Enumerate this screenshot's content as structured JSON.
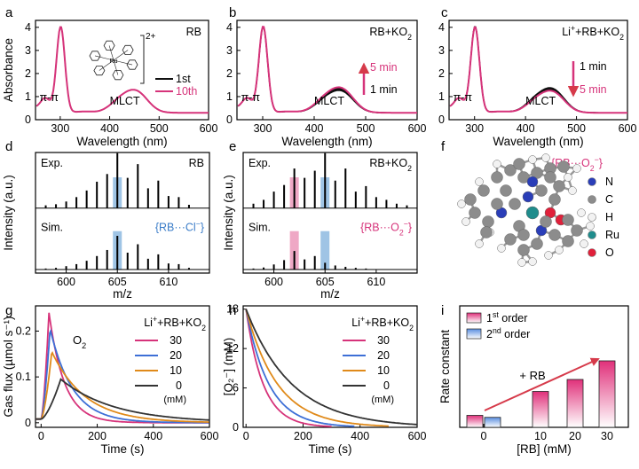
{
  "figure": {
    "panel_letters": [
      "a",
      "b",
      "c",
      "d",
      "e",
      "f",
      "g",
      "h",
      "i"
    ],
    "molecule_label": "2+",
    "metal_label": "Ru"
  },
  "chart_data": [
    {
      "panel": "a",
      "type": "line",
      "xlabel": "Wavelength (nm)",
      "ylabel": "Absorbance",
      "xlim": [
        250,
        600
      ],
      "ylim": [
        0,
        4.3
      ],
      "xticks": [
        300,
        400,
        500,
        600
      ],
      "yticks": [
        0,
        1,
        2,
        3,
        4
      ],
      "title": "RB",
      "legend": [
        "1st",
        "10th"
      ],
      "annotations": [
        "π-π",
        "MLCT"
      ],
      "series": [
        {
          "name": "1st",
          "color": "#111111",
          "scale": 1.0
        },
        {
          "name": "10th",
          "color": "#d6337a",
          "scale": 1.0
        }
      ]
    },
    {
      "panel": "b",
      "type": "line",
      "xlabel": "Wavelength (nm)",
      "ylabel": "",
      "xlim": [
        250,
        600
      ],
      "ylim": [
        0,
        4.3
      ],
      "xticks": [
        300,
        400,
        500,
        600
      ],
      "yticks": [
        0,
        1,
        2,
        3,
        4
      ],
      "title": "RB+KO2",
      "arrow_top": "5 min",
      "arrow_bottom": "1 min",
      "annotations": [
        "π-π",
        "MLCT"
      ],
      "series": [
        {
          "name": "1 min",
          "color": "#111111",
          "scale": 0.97
        },
        {
          "name": "2 min",
          "color": "#111111",
          "scale": 1.0
        },
        {
          "name": "3 min",
          "color": "#111111",
          "scale": 1.03
        },
        {
          "name": "4 min",
          "color": "#111111",
          "scale": 1.06
        },
        {
          "name": "5 min",
          "color": "#d6337a",
          "scale": 1.1
        }
      ]
    },
    {
      "panel": "c",
      "type": "line",
      "xlabel": "Wavelength (nm)",
      "ylabel": "",
      "xlim": [
        250,
        600
      ],
      "ylim": [
        0,
        4.3
      ],
      "xticks": [
        300,
        400,
        500,
        600
      ],
      "yticks": [
        0,
        1,
        2,
        3,
        4
      ],
      "title": "Li+ +RB+KO2",
      "arrow_top": "1 min",
      "arrow_bottom": "5 min",
      "annotations": [
        "π-π",
        "MLCT"
      ],
      "series": [
        {
          "name": "1 min",
          "color": "#111111",
          "scale": 1.08
        },
        {
          "name": "2 min",
          "color": "#111111",
          "scale": 1.05
        },
        {
          "name": "3 min",
          "color": "#111111",
          "scale": 1.02
        },
        {
          "name": "4 min",
          "color": "#111111",
          "scale": 0.99
        },
        {
          "name": "5 min",
          "color": "#d6337a",
          "scale": 0.96
        }
      ]
    },
    {
      "panel": "d",
      "type": "bar",
      "xlabel": "m/z",
      "ylabel": "Intensity (a.u.)",
      "xlim": [
        597,
        614
      ],
      "xticks": [
        600,
        605,
        610
      ],
      "top_label": "Exp.",
      "bottom_label": "Sim.",
      "title": "RB",
      "species": "{RB···Cl⁻}",
      "highlight": [
        {
          "mz": 605,
          "color": "#7fb0dc"
        }
      ],
      "exp": [
        [
          598,
          0.05
        ],
        [
          599,
          0.07
        ],
        [
          600,
          0.12
        ],
        [
          601,
          0.2
        ],
        [
          602,
          0.32
        ],
        [
          603,
          0.48
        ],
        [
          604,
          0.62
        ],
        [
          605,
          1.0
        ],
        [
          606,
          0.55
        ],
        [
          607,
          0.8
        ],
        [
          608,
          0.36
        ],
        [
          609,
          0.5
        ],
        [
          610,
          0.22
        ],
        [
          611,
          0.2
        ],
        [
          612,
          0.06
        ]
      ],
      "sim": [
        [
          598,
          0.03
        ],
        [
          599,
          0.05
        ],
        [
          600,
          0.1
        ],
        [
          601,
          0.16
        ],
        [
          602,
          0.26
        ],
        [
          603,
          0.4
        ],
        [
          604,
          0.58
        ],
        [
          605,
          1.0
        ],
        [
          606,
          0.5
        ],
        [
          607,
          0.75
        ],
        [
          608,
          0.32
        ],
        [
          609,
          0.45
        ],
        [
          610,
          0.18
        ],
        [
          611,
          0.16
        ],
        [
          612,
          0.05
        ]
      ]
    },
    {
      "panel": "e",
      "type": "bar",
      "xlabel": "m/z",
      "ylabel": "",
      "xlim": [
        597,
        614
      ],
      "xticks": [
        600,
        605,
        610
      ],
      "top_label": "Exp.",
      "bottom_label": "Sim.",
      "title": "RB+KO2",
      "species": "{RB···O₂⁻}",
      "highlight": [
        {
          "mz": 602,
          "color": "#e98bb1"
        },
        {
          "mz": 605,
          "color": "#7fb0dc"
        }
      ],
      "exp": [
        [
          598,
          0.08
        ],
        [
          599,
          0.15
        ],
        [
          600,
          0.3
        ],
        [
          601,
          0.42
        ],
        [
          602,
          0.72
        ],
        [
          603,
          0.55
        ],
        [
          604,
          0.68
        ],
        [
          605,
          1.0
        ],
        [
          606,
          0.5
        ],
        [
          607,
          0.72
        ],
        [
          608,
          0.3
        ],
        [
          609,
          0.4
        ],
        [
          610,
          0.2
        ],
        [
          611,
          0.15
        ],
        [
          612,
          0.08
        ],
        [
          613,
          0.05
        ]
      ],
      "sim": [
        [
          598,
          0.03
        ],
        [
          599,
          0.06
        ],
        [
          600,
          0.15
        ],
        [
          601,
          0.28
        ],
        [
          602,
          0.55
        ],
        [
          603,
          0.3
        ],
        [
          604,
          0.4
        ],
        [
          605,
          0.2
        ],
        [
          606,
          0.12
        ],
        [
          607,
          0.08
        ],
        [
          608,
          0.05
        ],
        [
          609,
          0.03
        ]
      ]
    },
    {
      "panel": "g",
      "type": "line",
      "xlabel": "Time (s)",
      "ylabel": "Gas flux (µmol s⁻¹)",
      "xlim": [
        -20,
        600
      ],
      "ylim": [
        -0.01,
        0.255
      ],
      "xticks": [
        0,
        200,
        400,
        600
      ],
      "yticks": [
        0.0,
        0.1,
        0.2
      ],
      "title": "Li+ +RB+KO2",
      "species": "O2",
      "legend_unit": "(mM)",
      "series": [
        {
          "name": "30",
          "color": "#d6337a",
          "peak": 0.24,
          "peak_t": 28,
          "tau": 55,
          "tail": 0.0,
          "tmax": 600
        },
        {
          "name": "20",
          "color": "#3d6fd6",
          "peak": 0.205,
          "peak_t": 32,
          "tau": 80,
          "tail": 0.0,
          "tmax": 600
        },
        {
          "name": "10",
          "color": "#e08a1a",
          "peak": 0.155,
          "peak_t": 38,
          "tau": 120,
          "tail": 0.0,
          "tmax": 600
        },
        {
          "name": "0",
          "color": "#333333",
          "peak": 0.095,
          "peak_t": 70,
          "tau": 190,
          "tail": 0.0,
          "tmax": 600
        }
      ]
    },
    {
      "panel": "h",
      "type": "line",
      "xlabel": "Time (s)",
      "ylabel": "[O₂⁻] (mM)",
      "xlim": [
        -10,
        600
      ],
      "ylim": [
        0,
        18.5
      ],
      "xticks": [
        0,
        200,
        400,
        600
      ],
      "yticks": [
        0,
        6,
        12,
        18
      ],
      "title": "Li+ +RB+KO2",
      "legend_unit": "(mM)",
      "series": [
        {
          "name": "30",
          "color": "#d6337a",
          "c0": 18,
          "tau": 60,
          "tmax": 300
        },
        {
          "name": "20",
          "color": "#3d6fd6",
          "c0": 18,
          "tau": 80,
          "tmax": 380
        },
        {
          "name": "10",
          "color": "#e08a1a",
          "c0": 18,
          "tau": 110,
          "tmax": 500
        },
        {
          "name": "0",
          "color": "#333333",
          "c0": 18,
          "tau": 160,
          "tmax": 600
        }
      ]
    },
    {
      "panel": "i",
      "type": "bar",
      "xlabel": "[RB] (mM)",
      "ylabel": "Rate constant",
      "categories": [
        "0",
        "10",
        "20",
        "30"
      ],
      "legend": [
        "1st order",
        "2nd order"
      ],
      "annotation": "+ RB",
      "first_order": [
        0.18,
        0.54,
        0.72,
        1.0
      ],
      "second_order": [
        0.15,
        null,
        null,
        null
      ]
    }
  ],
  "panel_f": {
    "title": "{RB···O₂⁻}",
    "legend": [
      {
        "label": "N",
        "color": "#2a3eb8"
      },
      {
        "label": "C",
        "color": "#8c8c8c"
      },
      {
        "label": "H",
        "color": "#f2f2f2"
      },
      {
        "label": "Ru",
        "color": "#1f8c8c"
      },
      {
        "label": "O",
        "color": "#e0203a"
      }
    ]
  }
}
